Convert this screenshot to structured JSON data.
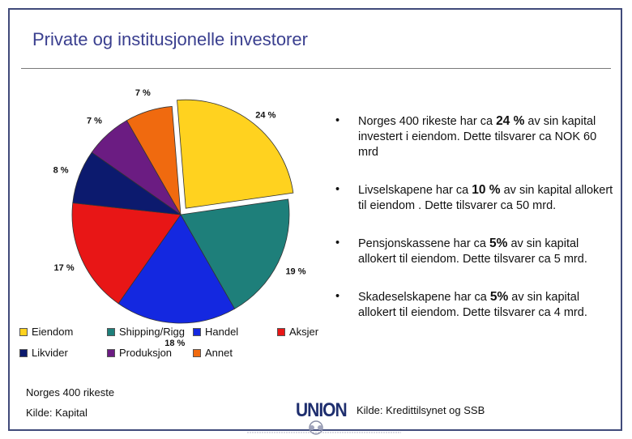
{
  "slide": {
    "title": "Private og institusjonelle investorer",
    "bullets": [
      {
        "pre": "Norges 400 rikeste har ca ",
        "bold": "24 %",
        "post": " av sin kapital investert i eiendom. Dette tilsvarer ca NOK 60 mrd"
      },
      {
        "pre": "Livselskapene har ca ",
        "bold": "10 %",
        "post": " av sin kapital allokert til eiendom . Dette tilsvarer ca 50 mrd."
      },
      {
        "pre": "Pensjonskassene har ca ",
        "bold": "5%",
        "post": " av sin kapital allokert til eiendom. Dette tilsvarer ca 5 mrd."
      },
      {
        "pre": "Skadeselskapene har ca ",
        "bold": "5%",
        "post": " av sin kapital allokert til eiendom. Dette tilsvarer ca 4 mrd."
      }
    ],
    "bullet_char": "•",
    "note_left_1": "Norges 400 rikeste",
    "note_left_2": "Kilde: Kapital",
    "note_right": "Kilde: Kredittilsynet og SSB",
    "logo_text": "UNION",
    "legend_marker_color": "#000000"
  },
  "chart_data": {
    "type": "pie",
    "slices": [
      {
        "label": "Eiendom",
        "value": 24,
        "color": "#FFD21F",
        "exploded": true,
        "data_label": "24 %"
      },
      {
        "label": "Shipping/Rigg",
        "value": 19,
        "color": "#1E7F7A",
        "exploded": false,
        "data_label": "19 %"
      },
      {
        "label": "Handel",
        "value": 18,
        "color": "#1428E0",
        "exploded": false,
        "data_label": "18 %"
      },
      {
        "label": "Aksjer",
        "value": 17,
        "color": "#E81616",
        "exploded": false,
        "data_label": "17 %"
      },
      {
        "label": "Likvider",
        "value": 8,
        "color": "#0C1A6E",
        "exploded": false,
        "data_label": "8 %"
      },
      {
        "label": "Produksjon",
        "value": 7,
        "color": "#6B1C82",
        "exploded": false,
        "data_label": "7 %"
      },
      {
        "label": "Annet",
        "value": 7,
        "color": "#F06A0F",
        "exploded": false,
        "data_label": "7 %"
      }
    ],
    "legend": [
      "Eiendom",
      "Shipping/Rigg",
      "Handel",
      "Aksjer",
      "Likvider",
      "Produksjon",
      "Annet"
    ],
    "legend_placement": "bottom"
  }
}
